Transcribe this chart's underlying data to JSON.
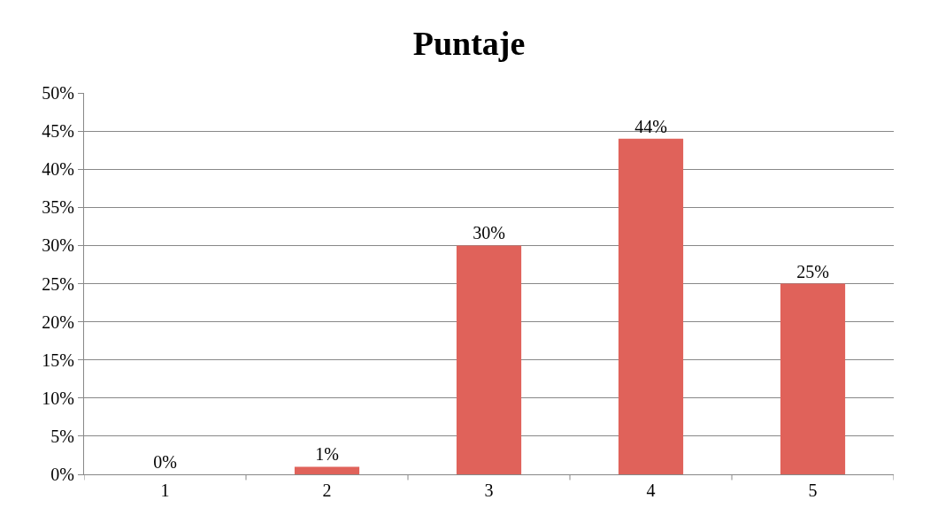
{
  "chart_data": {
    "type": "bar",
    "title": "Puntaje",
    "categories": [
      "1",
      "2",
      "3",
      "4",
      "5"
    ],
    "values": [
      0,
      1,
      30,
      44,
      25
    ],
    "value_labels": [
      "0%",
      "1%",
      "30%",
      "44%",
      "25%"
    ],
    "color": "#e0625a",
    "ylim": [
      0,
      50
    ],
    "yticks": [
      {
        "value": 0,
        "label": "0%"
      },
      {
        "value": 5,
        "label": "5%"
      },
      {
        "value": 10,
        "label": "10%"
      },
      {
        "value": 15,
        "label": "15%"
      },
      {
        "value": 20,
        "label": "20%"
      },
      {
        "value": 25,
        "label": "25%"
      },
      {
        "value": 30,
        "label": "30%"
      },
      {
        "value": 35,
        "label": "35%"
      },
      {
        "value": 40,
        "label": "40%"
      },
      {
        "value": 45,
        "label": "45%"
      },
      {
        "value": 50,
        "label": "50%"
      }
    ],
    "grid": "y",
    "legend": false
  }
}
